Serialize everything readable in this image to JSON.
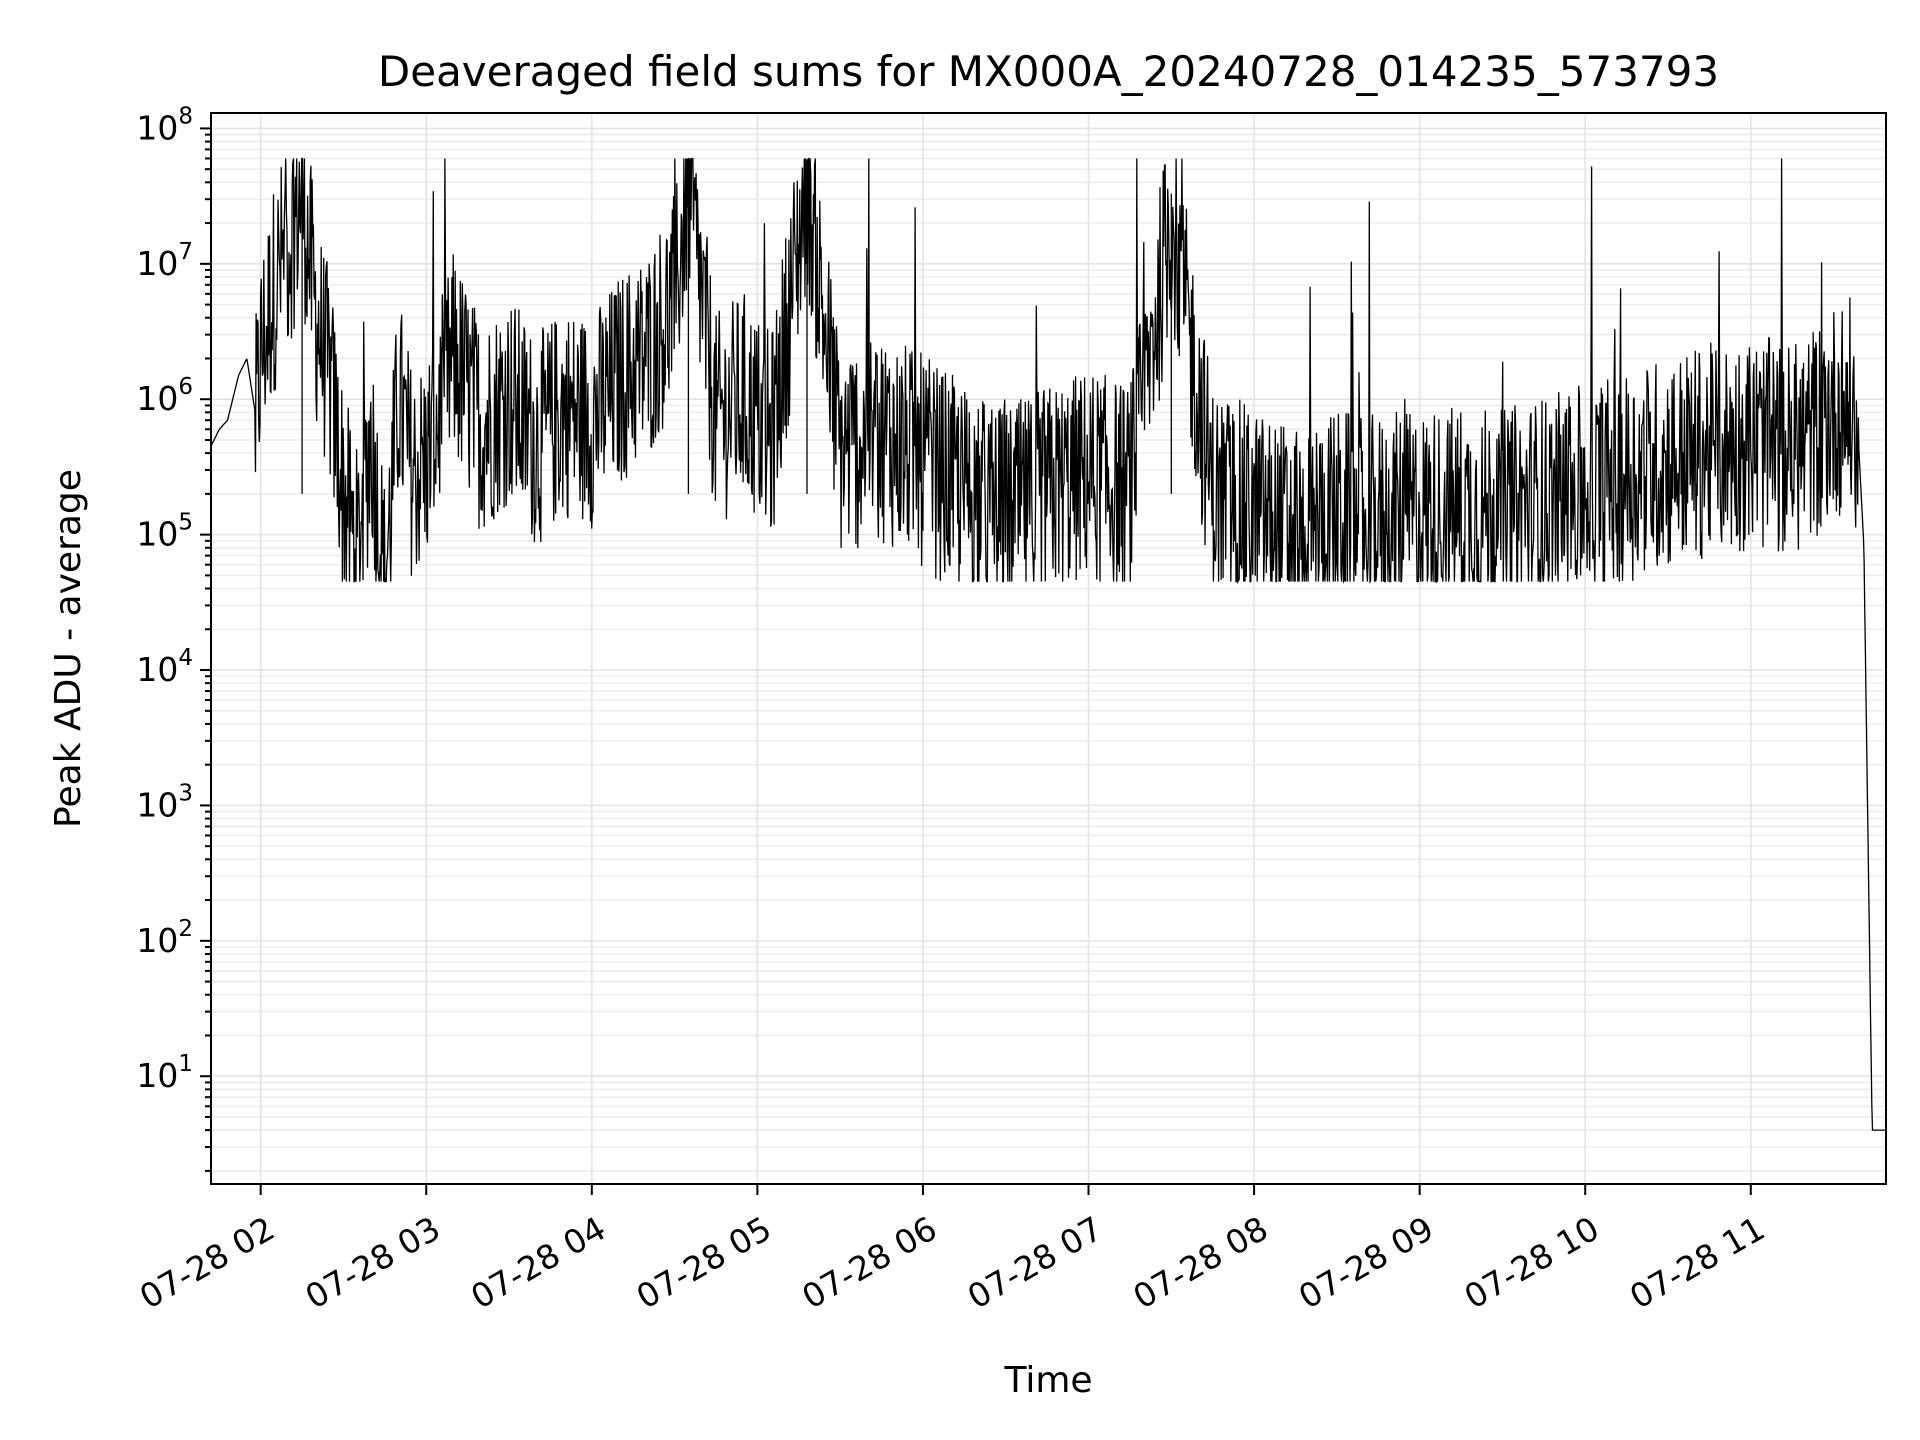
{
  "chart_data": {
    "type": "line",
    "title": "Deaveraged field sums for MX000A_20240728_014235_573793",
    "xlabel": "Time",
    "ylabel": "Peak ADU - average",
    "y_scale": "log",
    "ylim": [
      1.6,
      130000000
    ],
    "y_major_ticks": [
      {
        "value": 10,
        "base": "10",
        "exp": "1"
      },
      {
        "value": 100,
        "base": "10",
        "exp": "2"
      },
      {
        "value": 1000,
        "base": "10",
        "exp": "3"
      },
      {
        "value": 10000,
        "base": "10",
        "exp": "4"
      },
      {
        "value": 100000,
        "base": "10",
        "exp": "5"
      },
      {
        "value": 1000000,
        "base": "10",
        "exp": "6"
      },
      {
        "value": 10000000,
        "base": "10",
        "exp": "7"
      },
      {
        "value": 100000000,
        "base": "10",
        "exp": "8"
      }
    ],
    "xlim": [
      "2024-07-28 01:42:00",
      "2024-07-28 11:49:00"
    ],
    "x_ticks": [
      {
        "time": "2024-07-28 02:00",
        "label": "07-28 02"
      },
      {
        "time": "2024-07-28 03:00",
        "label": "07-28 03"
      },
      {
        "time": "2024-07-28 04:00",
        "label": "07-28 04"
      },
      {
        "time": "2024-07-28 05:00",
        "label": "07-28 05"
      },
      {
        "time": "2024-07-28 06:00",
        "label": "07-28 06"
      },
      {
        "time": "2024-07-28 07:00",
        "label": "07-28 07"
      },
      {
        "time": "2024-07-28 08:00",
        "label": "07-28 08"
      },
      {
        "time": "2024-07-28 09:00",
        "label": "07-28 09"
      },
      {
        "time": "2024-07-28 10:00",
        "label": "07-28 10"
      },
      {
        "time": "2024-07-28 11:00",
        "label": "07-28 11"
      }
    ],
    "grid": true,
    "series": [
      {
        "color": "#000000",
        "points": [
          [
            "2024-07-28 01:42",
            450000
          ],
          [
            "2024-07-28 01:45",
            600000
          ],
          [
            "2024-07-28 01:48",
            700000
          ],
          [
            "2024-07-28 01:52",
            1500000
          ],
          [
            "2024-07-28 01:55",
            2000000
          ],
          [
            "2024-07-28 01:58",
            800000
          ],
          [
            "2024-07-28 02:00",
            3000000
          ],
          [
            "2024-07-28 02:05",
            10000000
          ],
          [
            "2024-07-28 02:10",
            20000000
          ],
          [
            "2024-07-28 02:15",
            50000000
          ],
          [
            "2024-07-28 02:20",
            6000000
          ],
          [
            "2024-07-28 02:25",
            2000000
          ],
          [
            "2024-07-28 02:30",
            300000
          ],
          [
            "2024-07-28 02:35",
            100000
          ],
          [
            "2024-07-28 02:40",
            800000
          ],
          [
            "2024-07-28 02:45",
            60000
          ],
          [
            "2024-07-28 02:50",
            1500000
          ],
          [
            "2024-07-28 02:55",
            400000
          ],
          [
            "2024-07-28 03:00",
            500000
          ],
          [
            "2024-07-28 03:10",
            3000000
          ],
          [
            "2024-07-28 03:20",
            900000
          ],
          [
            "2024-07-28 03:30",
            1500000
          ],
          [
            "2024-07-28 03:40",
            700000
          ],
          [
            "2024-07-28 03:50",
            1200000
          ],
          [
            "2024-07-28 04:00",
            1000000
          ],
          [
            "2024-07-28 04:10",
            2000000
          ],
          [
            "2024-07-28 04:20",
            3000000
          ],
          [
            "2024-07-28 04:30",
            8000000
          ],
          [
            "2024-07-28 04:35",
            57000000
          ],
          [
            "2024-07-28 04:45",
            1000000
          ],
          [
            "2024-07-28 04:55",
            1500000
          ],
          [
            "2024-07-28 05:05",
            700000
          ],
          [
            "2024-07-28 05:18",
            59000000
          ],
          [
            "2024-07-28 05:30",
            600000
          ],
          [
            "2024-07-28 05:45",
            800000
          ],
          [
            "2024-07-28 06:00",
            500000
          ],
          [
            "2024-07-28 06:15",
            300000
          ],
          [
            "2024-07-28 06:30",
            200000
          ],
          [
            "2024-07-28 06:45",
            300000
          ],
          [
            "2024-07-28 07:00",
            400000
          ],
          [
            "2024-07-28 07:15",
            300000
          ],
          [
            "2024-07-28 07:30",
            33000000
          ],
          [
            "2024-07-28 07:45",
            300000
          ],
          [
            "2024-07-28 08:00",
            200000
          ],
          [
            "2024-07-28 08:15",
            150000
          ],
          [
            "2024-07-28 08:30",
            200000
          ],
          [
            "2024-07-28 08:45",
            180000
          ],
          [
            "2024-07-28 09:00",
            200000
          ],
          [
            "2024-07-28 09:15",
            220000
          ],
          [
            "2024-07-28 09:30",
            200000
          ],
          [
            "2024-07-28 09:45",
            250000
          ],
          [
            "2024-07-28 10:00",
            300000
          ],
          [
            "2024-07-28 10:15",
            400000
          ],
          [
            "2024-07-28 10:30",
            500000
          ],
          [
            "2024-07-28 10:45",
            600000
          ],
          [
            "2024-07-28 11:00",
            700000
          ],
          [
            "2024-07-28 11:15",
            600000
          ],
          [
            "2024-07-28 11:25",
            900000
          ],
          [
            "2024-07-28 11:30",
            1200000
          ],
          [
            "2024-07-28 11:36",
            1300000
          ],
          [
            "2024-07-28 11:39",
            500000
          ],
          [
            "2024-07-28 11:41",
            80000
          ],
          [
            "2024-07-28 11:43",
            100
          ],
          [
            "2024-07-28 11:44",
            4
          ],
          [
            "2024-07-28 11:49",
            4
          ]
        ]
      }
    ]
  }
}
